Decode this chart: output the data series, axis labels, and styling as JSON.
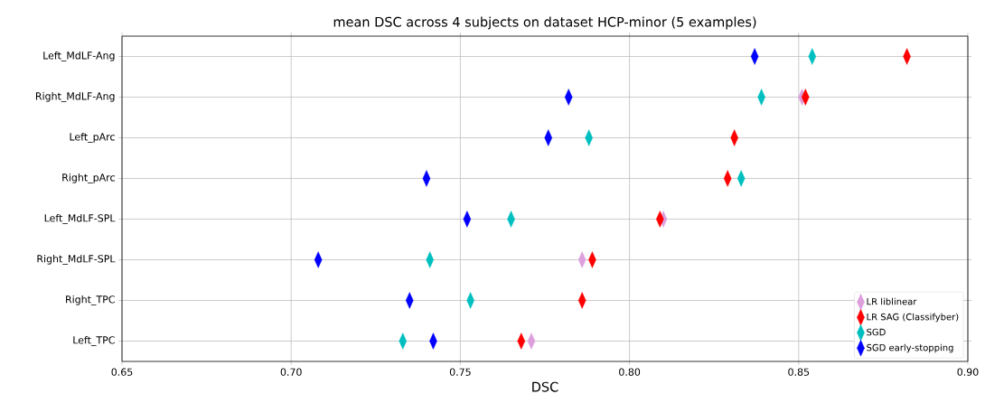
{
  "chart_data": {
    "type": "scatter",
    "title": "mean DSC across 4 subjects on dataset HCP-minor (5 examples)",
    "xlabel": "DSC",
    "orientation": "horizontal",
    "categories": [
      "Left_MdLF-Ang",
      "Right_MdLF-Ang",
      "Left_pArc",
      "Right_pArc",
      "Left_MdLF-SPL",
      "Right_MdLF-SPL",
      "Right_TPC",
      "Left_TPC"
    ],
    "series": [
      {
        "name": "LR liblinear",
        "color": "#dda0dd",
        "values": [
          null,
          0.851,
          null,
          null,
          0.81,
          0.786,
          null,
          0.771
        ]
      },
      {
        "name": "LR SAG (Classifyber)",
        "color": "#ff0000",
        "values": [
          0.882,
          0.852,
          0.831,
          0.829,
          0.809,
          0.789,
          0.786,
          0.768
        ]
      },
      {
        "name": "SGD",
        "color": "#00bfbf",
        "values": [
          0.854,
          0.839,
          0.788,
          0.833,
          0.765,
          0.741,
          0.753,
          0.733
        ]
      },
      {
        "name": "SGD early-stopping",
        "color": "#0000ff",
        "values": [
          0.837,
          0.782,
          0.776,
          0.74,
          0.752,
          0.708,
          0.735,
          0.742
        ]
      }
    ],
    "xlim": [
      0.65,
      0.9
    ],
    "xticks": [
      0.65,
      {
        "value": 0.7,
        "label": "0.70"
      },
      0.75,
      {
        "value": 0.8,
        "label": "0.80"
      },
      0.85,
      {
        "value": 0.9,
        "label": "0.90"
      }
    ],
    "grid": true,
    "legend": "bottom right",
    "marker": "diamond"
  }
}
